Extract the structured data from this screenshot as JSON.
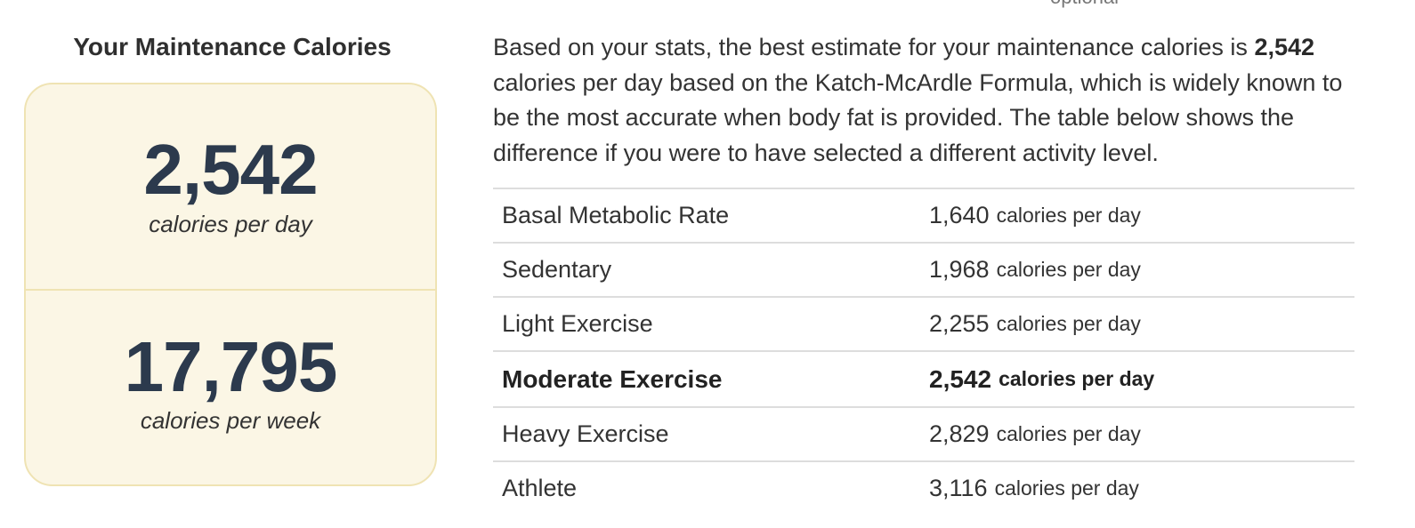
{
  "top_label": "optional",
  "left_panel": {
    "title": "Your Maintenance Calories",
    "daily": {
      "value": "2,542",
      "unit": "calories per day"
    },
    "weekly": {
      "value": "17,795",
      "unit": "calories per week"
    }
  },
  "intro": {
    "before": "Based on your stats, the best estimate for your maintenance calories is ",
    "highlight": "2,542",
    "after": " calories per day based on the Katch-McArdle Formula, which is widely known to be the most accurate when body fat is provided. The table below shows the difference if you were to have selected a different activity level."
  },
  "table": {
    "unit_label": "calories per day",
    "rows": [
      {
        "level": "Basal Metabolic Rate",
        "calories": "1,640"
      },
      {
        "level": "Sedentary",
        "calories": "1,968"
      },
      {
        "level": "Light Exercise",
        "calories": "2,255"
      },
      {
        "level": "Moderate Exercise",
        "calories": "2,542",
        "selected": true
      },
      {
        "level": "Heavy Exercise",
        "calories": "2,829"
      },
      {
        "level": "Athlete",
        "calories": "3,116"
      }
    ]
  }
}
